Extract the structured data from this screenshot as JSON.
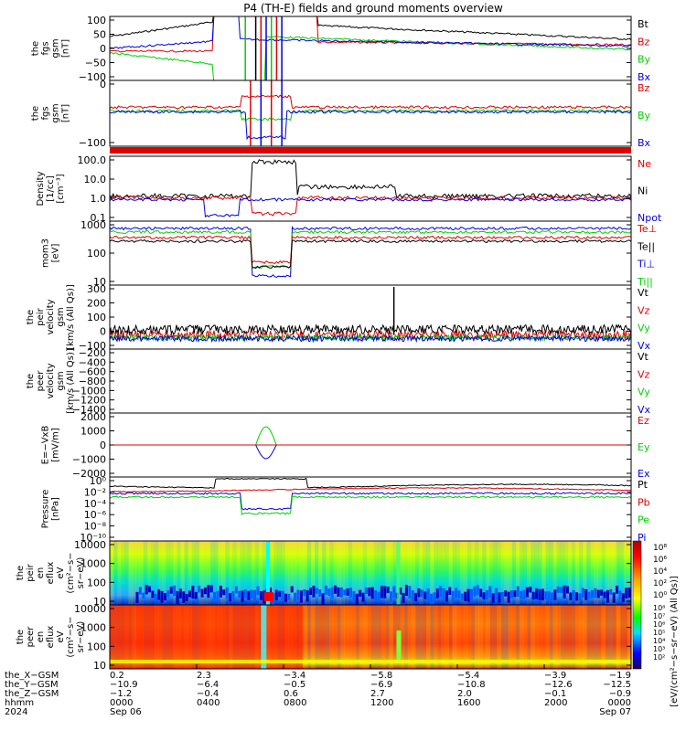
{
  "colors": {
    "black": "#000000",
    "red": "#e00000",
    "green": "#00d000",
    "blue": "#0000e0"
  },
  "chart_data": {
    "type": "line",
    "title": "P4 (TH-E) fields and ground moments overview",
    "panels": [
      {
        "id": "fgs",
        "ylabel_lines": [
          "the",
          "fgs",
          "gsm",
          "[nT]"
        ],
        "ylim": [
          -100,
          100
        ],
        "yticks": [
          "100",
          "50",
          "0",
          "−50",
          "−100"
        ],
        "legend": [
          {
            "label": "Bt",
            "color": "black"
          },
          {
            "label": "Bz",
            "color": "red"
          },
          {
            "label": "By",
            "color": "green"
          },
          {
            "label": "Bx",
            "color": "blue"
          }
        ]
      },
      {
        "id": "fgs2",
        "ylabel_lines": [
          "the",
          "fgs",
          "gsm",
          "[nT]"
        ],
        "ylim": [
          -120,
          40
        ],
        "yticks": [
          "−100",
          "0",
          "−100"
        ],
        "yticks_shown": [
          "0",
          "−100"
        ],
        "legend": [
          {
            "label": "Bz",
            "color": "red"
          },
          {
            "label": "By",
            "color": "green"
          },
          {
            "label": "Bx",
            "color": "blue"
          }
        ]
      },
      {
        "id": "density",
        "ylabel_lines": [
          "Density",
          "[1/cc]",
          "[cm⁻³]"
        ],
        "scale": "log",
        "yticks": [
          "100.0",
          "10.0",
          "1.0",
          "0.1"
        ],
        "legend": [
          {
            "label": "Ne",
            "color": "red"
          },
          {
            "label": "Ni",
            "color": "black"
          },
          {
            "label": "Npot",
            "color": "blue"
          }
        ]
      },
      {
        "id": "temp",
        "ylabel_lines": [
          "mom3",
          "[eV]"
        ],
        "scale": "log",
        "yticks": [
          "1000",
          "100",
          "10"
        ],
        "legend": [
          {
            "label": "Te⊥",
            "color": "red"
          },
          {
            "label": "Te||",
            "color": "black"
          },
          {
            "label": "Ti⊥",
            "color": "blue"
          },
          {
            "label": "Ti||",
            "color": "green"
          }
        ]
      },
      {
        "id": "peir_v",
        "ylabel_lines": [
          "the",
          "peir",
          "velocity",
          "gsm",
          "[km/s (All Qs)]"
        ],
        "ylim": [
          -100,
          380
        ],
        "yticks": [
          "300",
          "200",
          "100",
          "0",
          "−100"
        ],
        "legend": [
          {
            "label": "Vt",
            "color": "black"
          },
          {
            "label": "Vz",
            "color": "red"
          },
          {
            "label": "Vy",
            "color": "green"
          },
          {
            "label": "Vx",
            "color": "blue"
          }
        ]
      },
      {
        "id": "peer_v",
        "ylabel_lines": [
          "the",
          "peer",
          "velocity",
          "gsm",
          "[km/s (All Qs)]"
        ],
        "ylim": [
          -1500,
          -100
        ],
        "yticks": [
          "−200",
          "−400",
          "−600",
          "−800",
          "−1000",
          "−1200",
          "−1400"
        ],
        "legend": [
          {
            "label": "Vt",
            "color": "black"
          },
          {
            "label": "Vz",
            "color": "red"
          },
          {
            "label": "Vy",
            "color": "green"
          },
          {
            "label": "Vx",
            "color": "blue"
          }
        ]
      },
      {
        "id": "efield",
        "ylabel_lines": [
          "E=−VxB",
          "[mV/m]"
        ],
        "ylim": [
          -2000,
          2000
        ],
        "yticks": [
          "2000",
          "1000",
          "0",
          "−1000",
          "−2000"
        ],
        "legend": [
          {
            "label": "Ez",
            "color": "red"
          },
          {
            "label": "Ey",
            "color": "green"
          },
          {
            "label": "Ex",
            "color": "blue"
          }
        ]
      },
      {
        "id": "pressure",
        "ylabel_lines": [
          "Pressure",
          "[nPa]"
        ],
        "scale": "log",
        "yticks": [
          "10⁰",
          "10⁻²",
          "10⁻⁴",
          "10⁻⁶",
          "10⁻⁸",
          "10⁻¹⁰"
        ],
        "legend": [
          {
            "label": "Pt",
            "color": "black"
          },
          {
            "label": "Pb",
            "color": "red"
          },
          {
            "label": "Pe",
            "color": "green"
          },
          {
            "label": "Pi",
            "color": "blue"
          }
        ]
      },
      {
        "id": "peir_spec",
        "type": "heatmap",
        "ylabel_lines": [
          "the",
          "peir",
          "en",
          "eflux",
          "eV",
          "(cm²−s−",
          "sr−eV)"
        ],
        "yticks": [
          "10000",
          "1000",
          "100",
          "10"
        ]
      },
      {
        "id": "peer_spec",
        "type": "heatmap",
        "ylabel_lines": [
          "the",
          "peer",
          "en",
          "eflux",
          "eV",
          "(cm²−s−",
          "sr−eV)"
        ],
        "yticks": [
          "10000",
          "1000",
          "100",
          "10"
        ]
      }
    ],
    "colorbar": {
      "label": "[eV/(cm²−s−sr−eV) (All Qs)]",
      "ticks_top": [
        "10⁸",
        "10⁶",
        "10⁴",
        "10²",
        "10⁰"
      ],
      "ticks_bottom": [
        "10⁸",
        "10⁷",
        "10⁶",
        "10⁵",
        "10⁴",
        "10³",
        "10²"
      ]
    },
    "x_axis": {
      "row_labels": [
        "the_X−GSM",
        "the_Y−GSM",
        "the_Z−GSM",
        "hhmm",
        "2024"
      ],
      "columns": [
        {
          "x": "0.2",
          "y": "−10.9",
          "z": "−1.2",
          "hhmm": "0000",
          "date": "Sep 06"
        },
        {
          "x": "2.3",
          "y": "−6.4",
          "z": "−0.4",
          "hhmm": "0400",
          "date": ""
        },
        {
          "x": "−3.4",
          "y": "−0.5",
          "z": "0.6",
          "hhmm": "0800",
          "date": ""
        },
        {
          "x": "−5.8",
          "y": "−6.9",
          "z": "2.7",
          "hhmm": "1200",
          "date": ""
        },
        {
          "x": "−5.4",
          "y": "−10.8",
          "z": "2.0",
          "hhmm": "1600",
          "date": ""
        },
        {
          "x": "−3.9",
          "y": "−12.6",
          "z": "−0.1",
          "hhmm": "2000",
          "date": ""
        },
        {
          "x": "−1.9",
          "y": "−12.5",
          "z": "−0.9",
          "hhmm": "0000",
          "date": "Sep 07"
        }
      ]
    }
  }
}
